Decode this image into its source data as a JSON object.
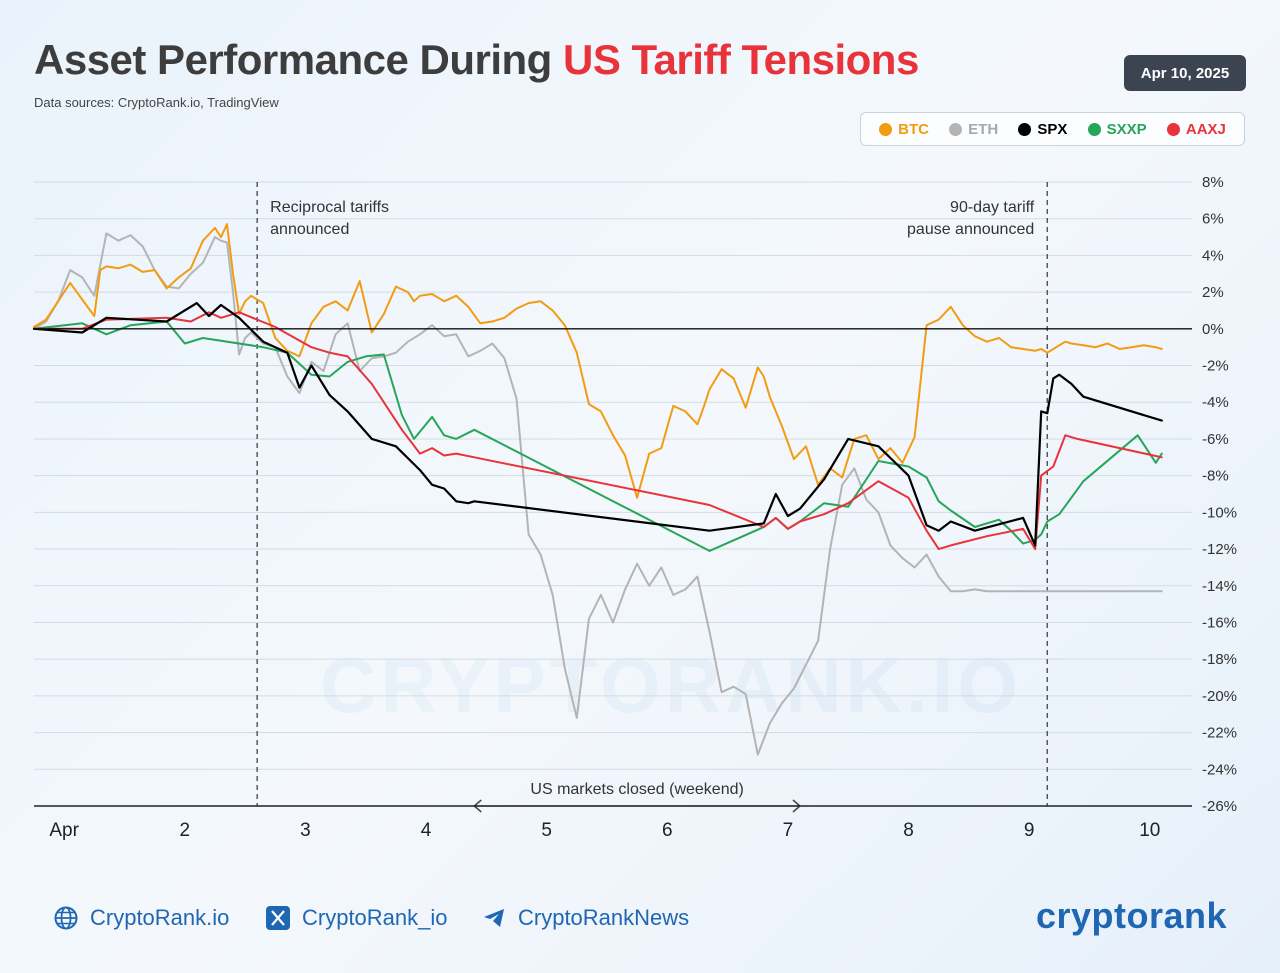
{
  "header": {
    "title_main": "Asset Performance During ",
    "title_highlight": "US Tariff Tensions",
    "sources": "Data sources: CryptoRank.io, TradingView",
    "date": "Apr 10, 2025"
  },
  "watermark": "CRYPTORANK.IO",
  "footer": {
    "website": "CryptoRank.io",
    "x_handle": "CryptoRank_io",
    "telegram": "CryptoRankNews",
    "brand": "cryptorank"
  },
  "colors": {
    "BTC": "#f39c12",
    "ETH": "#b4b4b4",
    "SPX": "#000000",
    "SXXP": "#27a55a",
    "AAXJ": "#e8333a",
    "title_highlight": "#e8333a",
    "brand": "#1f66b3"
  },
  "chart_data": {
    "type": "line",
    "xlabel": "",
    "ylabel": "",
    "xlim": [
      1,
      10.6
    ],
    "ylim": [
      -26,
      8
    ],
    "y_ticks": [
      8,
      6,
      4,
      2,
      0,
      -2,
      -4,
      -6,
      -8,
      -10,
      -12,
      -14,
      -16,
      -18,
      -20,
      -22,
      -24,
      -26
    ],
    "y_tick_labels": [
      "8%",
      "6%",
      "4%",
      "2%",
      "0%",
      "-2%",
      "-4%",
      "-6%",
      "-8%",
      "-10%",
      "-12%",
      "-14%",
      "-16%",
      "-18%",
      "-20%",
      "-22%",
      "-24%",
      "-26%"
    ],
    "x_ticks": [
      1.25,
      2.25,
      3.25,
      4.25,
      5.25,
      6.25,
      7.25,
      8.25,
      9.25,
      10.25
    ],
    "x_tick_labels": [
      "Apr",
      "2",
      "3",
      "4",
      "5",
      "6",
      "7",
      "8",
      "9",
      "10"
    ],
    "grid": true,
    "legend_position": "top-right",
    "legend": [
      "BTC",
      "ETH",
      "SPX",
      "SXXP",
      "AAXJ"
    ],
    "annotations": [
      {
        "x": 2.85,
        "text1": "Reciprocal tariffs",
        "text2": "announced"
      },
      {
        "x": 9.4,
        "text1": "90-day tariff",
        "text2": "pause announced"
      }
    ],
    "weekend_label": "US markets closed (weekend)",
    "weekend_range": [
      4.65,
      7.35
    ],
    "series": [
      {
        "name": "BTC",
        "color": "#f39c12",
        "x": [
          1.0,
          1.1,
          1.2,
          1.3,
          1.4,
          1.5,
          1.55,
          1.6,
          1.7,
          1.8,
          1.9,
          2.0,
          2.1,
          2.2,
          2.3,
          2.4,
          2.5,
          2.55,
          2.6,
          2.65,
          2.7,
          2.75,
          2.8,
          2.9,
          3.0,
          3.1,
          3.2,
          3.3,
          3.4,
          3.5,
          3.6,
          3.7,
          3.8,
          3.9,
          4.0,
          4.1,
          4.15,
          4.2,
          4.3,
          4.4,
          4.5,
          4.6,
          4.7,
          4.8,
          4.9,
          5.0,
          5.1,
          5.2,
          5.3,
          5.4,
          5.5,
          5.6,
          5.7,
          5.8,
          5.9,
          6.0,
          6.1,
          6.2,
          6.3,
          6.4,
          6.5,
          6.55,
          6.6,
          6.7,
          6.8,
          6.9,
          7.0,
          7.05,
          7.1,
          7.2,
          7.3,
          7.4,
          7.5,
          7.6,
          7.7,
          7.8,
          7.9,
          8.0,
          8.1,
          8.2,
          8.3,
          8.4,
          8.5,
          8.6,
          8.7,
          8.8,
          8.9,
          9.0,
          9.1,
          9.2,
          9.3,
          9.35,
          9.4,
          9.45,
          9.5,
          9.55,
          9.6,
          9.7,
          9.8,
          9.9,
          10.0,
          10.1,
          10.2,
          10.3,
          10.35
        ],
        "y": [
          0.1,
          0.5,
          1.5,
          2.5,
          1.6,
          0.7,
          3.2,
          3.4,
          3.3,
          3.5,
          3.1,
          3.2,
          2.2,
          2.8,
          3.3,
          4.8,
          5.5,
          5.0,
          5.7,
          3.0,
          0.8,
          1.5,
          1.8,
          1.4,
          -0.5,
          -1.2,
          -1.5,
          0.3,
          1.2,
          1.5,
          1.0,
          2.6,
          -0.2,
          0.8,
          2.3,
          2.0,
          1.5,
          1.8,
          1.9,
          1.5,
          1.8,
          1.2,
          0.3,
          0.4,
          0.6,
          1.1,
          1.4,
          1.5,
          1.0,
          0.2,
          -1.3,
          -4.1,
          -4.5,
          -5.8,
          -6.9,
          -9.2,
          -6.8,
          -6.5,
          -4.2,
          -4.5,
          -5.2,
          -4.3,
          -3.3,
          -2.2,
          -2.7,
          -4.3,
          -2.1,
          -2.6,
          -3.7,
          -5.3,
          -7.1,
          -6.4,
          -8.5,
          -7.6,
          -8.1,
          -6.0,
          -5.8,
          -7.1,
          -6.5,
          -7.3,
          -5.9,
          0.2,
          0.5,
          1.2,
          0.2,
          -0.4,
          -0.7,
          -0.5,
          -1.0,
          -1.1,
          -1.2,
          -1.1,
          -1.3,
          -1.1,
          -0.9,
          -0.7,
          -0.8,
          -0.9,
          -1.0,
          -0.8,
          -1.1,
          -1.0,
          -0.9,
          -1.0,
          -1.1
        ]
      },
      {
        "name": "ETH",
        "color": "#b4b4b4",
        "x": [
          1.0,
          1.1,
          1.2,
          1.3,
          1.4,
          1.5,
          1.6,
          1.7,
          1.8,
          1.9,
          2.0,
          2.1,
          2.2,
          2.3,
          2.4,
          2.5,
          2.55,
          2.6,
          2.65,
          2.7,
          2.75,
          2.8,
          2.9,
          3.0,
          3.1,
          3.2,
          3.3,
          3.4,
          3.5,
          3.6,
          3.7,
          3.8,
          3.9,
          4.0,
          4.1,
          4.2,
          4.3,
          4.4,
          4.5,
          4.6,
          4.7,
          4.8,
          4.9,
          5.0,
          5.1,
          5.2,
          5.3,
          5.4,
          5.5,
          5.6,
          5.7,
          5.8,
          5.9,
          6.0,
          6.1,
          6.2,
          6.3,
          6.4,
          6.5,
          6.6,
          6.7,
          6.8,
          6.9,
          7.0,
          7.1,
          7.2,
          7.3,
          7.4,
          7.5,
          7.6,
          7.7,
          7.8,
          7.9,
          8.0,
          8.1,
          8.2,
          8.3,
          8.4,
          8.5,
          8.6,
          8.7,
          8.8,
          8.9,
          9.0,
          9.1,
          9.2,
          9.3,
          9.35,
          9.4,
          9.45,
          9.5,
          9.55,
          9.6,
          9.7,
          9.8,
          9.9,
          10.0,
          10.1,
          10.2,
          10.3,
          10.35
        ],
        "y": [
          0.0,
          0.4,
          1.5,
          3.2,
          2.8,
          1.8,
          5.2,
          4.8,
          5.1,
          4.5,
          3.2,
          2.3,
          2.2,
          3.0,
          3.6,
          5.0,
          4.8,
          4.7,
          2.0,
          -1.4,
          -0.5,
          -0.2,
          -0.8,
          -1.0,
          -2.6,
          -3.5,
          -1.8,
          -2.3,
          -0.3,
          0.3,
          -2.3,
          -1.6,
          -1.5,
          -1.3,
          -0.7,
          -0.3,
          0.2,
          -0.4,
          -0.3,
          -1.5,
          -1.2,
          -0.8,
          -1.6,
          -3.8,
          -11.2,
          -12.3,
          -14.5,
          -18.5,
          -21.2,
          -15.8,
          -14.5,
          -16.0,
          -14.2,
          -12.8,
          -14.0,
          -13.0,
          -14.5,
          -14.2,
          -13.5,
          -16.5,
          -19.8,
          -19.5,
          -19.9,
          -23.2,
          -21.5,
          -20.4,
          -19.6,
          -18.3,
          -17.0,
          -12.0,
          -8.5,
          -7.6,
          -9.3,
          -10.0,
          -11.8,
          -12.5,
          -13.0,
          -12.3,
          -13.5,
          -14.3,
          -14.3,
          -14.2,
          -14.3,
          -14.3,
          -14.3,
          -14.3,
          -14.3,
          -14.3,
          -14.3,
          -14.3,
          -14.3,
          -14.3,
          -14.3,
          -14.3,
          -14.3,
          -14.3,
          -14.3,
          -14.3,
          -14.3,
          -14.3,
          -14.3
        ]
      },
      {
        "name": "SPX",
        "color": "#000000",
        "x": [
          1.0,
          1.4,
          1.6,
          2.1,
          2.35,
          2.45,
          2.55,
          2.7,
          2.9,
          3.1,
          3.2,
          3.3,
          3.45,
          3.6,
          3.8,
          4.0,
          4.2,
          4.3,
          4.4,
          4.5,
          4.6,
          4.65,
          6.6,
          7.05,
          7.15,
          7.25,
          7.35,
          7.55,
          7.75,
          8.0,
          8.25,
          8.4,
          8.5,
          8.6,
          8.8,
          9.2,
          9.3,
          9.35,
          9.4,
          9.45,
          9.5,
          9.6,
          9.7,
          10.35
        ],
        "y": [
          0.0,
          -0.2,
          0.6,
          0.4,
          1.4,
          0.7,
          1.3,
          0.6,
          -0.7,
          -1.3,
          -3.2,
          -2.0,
          -3.6,
          -4.5,
          -6.0,
          -6.4,
          -7.7,
          -8.5,
          -8.7,
          -9.4,
          -9.5,
          -9.4,
          -11.0,
          -10.6,
          -9.0,
          -10.2,
          -9.8,
          -8.2,
          -6.0,
          -6.4,
          -8.0,
          -10.7,
          -11.0,
          -10.5,
          -11.0,
          -10.3,
          -11.8,
          -4.5,
          -4.6,
          -2.7,
          -2.5,
          -3.0,
          -3.7,
          -5.0
        ]
      },
      {
        "name": "SXXP",
        "color": "#27a55a",
        "x": [
          1.0,
          1.4,
          1.6,
          1.8,
          2.1,
          2.25,
          2.4,
          2.9,
          3.1,
          3.3,
          3.45,
          3.6,
          3.75,
          3.9,
          4.05,
          4.15,
          4.3,
          4.4,
          4.5,
          4.65,
          6.6,
          7.05,
          7.15,
          7.25,
          7.35,
          7.55,
          7.75,
          8.0,
          8.25,
          8.4,
          8.5,
          8.6,
          8.8,
          9.0,
          9.1,
          9.2,
          9.3,
          9.35,
          9.4,
          9.5,
          9.7,
          10.15,
          10.3,
          10.35
        ],
        "y": [
          0.0,
          0.3,
          -0.3,
          0.2,
          0.4,
          -0.8,
          -0.5,
          -1.0,
          -1.3,
          -2.5,
          -2.6,
          -1.8,
          -1.5,
          -1.4,
          -4.7,
          -6.0,
          -4.8,
          -5.8,
          -6.0,
          -5.5,
          -12.1,
          -10.8,
          -10.3,
          -10.9,
          -10.5,
          -9.5,
          -9.7,
          -7.2,
          -7.5,
          -8.1,
          -9.4,
          -9.9,
          -10.8,
          -10.4,
          -11.0,
          -11.7,
          -11.5,
          -11.2,
          -10.5,
          -10.1,
          -8.3,
          -5.8,
          -7.3,
          -6.8
        ]
      },
      {
        "name": "AAXJ",
        "color": "#e8333a",
        "x": [
          1.0,
          1.4,
          1.6,
          2.1,
          2.3,
          2.45,
          2.55,
          2.7,
          3.0,
          3.3,
          3.45,
          3.6,
          3.8,
          4.05,
          4.2,
          4.3,
          4.4,
          4.5,
          4.65,
          6.6,
          7.05,
          7.15,
          7.25,
          7.35,
          7.55,
          7.75,
          8.0,
          8.25,
          8.4,
          8.5,
          8.6,
          8.9,
          9.2,
          9.3,
          9.35,
          9.45,
          9.55,
          9.65,
          10.35
        ],
        "y": [
          0.0,
          0.0,
          0.5,
          0.6,
          0.4,
          0.9,
          0.6,
          0.9,
          0.1,
          -1.0,
          -1.3,
          -1.5,
          -3.0,
          -5.5,
          -6.8,
          -6.5,
          -6.9,
          -6.8,
          -7.0,
          -9.6,
          -10.8,
          -10.3,
          -10.9,
          -10.5,
          -10.1,
          -9.5,
          -8.3,
          -9.2,
          -11.0,
          -12.0,
          -11.8,
          -11.3,
          -10.9,
          -12.0,
          -8.0,
          -7.5,
          -5.8,
          -6.0,
          -7.0
        ]
      }
    ]
  }
}
